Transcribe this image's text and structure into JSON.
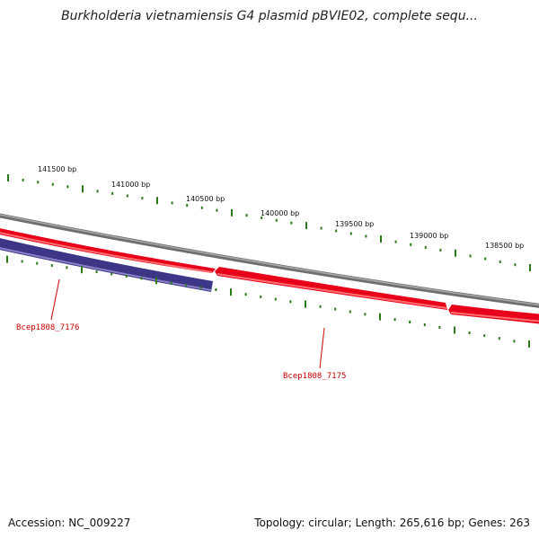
{
  "title": "Burkholderia vietnamiensis G4 plasmid pBVIE02, complete sequ...",
  "ruler": {
    "unit": "bp",
    "labels": [
      "141500 bp",
      "141000 bp",
      "140500 bp",
      "140000 bp",
      "139500 bp",
      "139000 bp",
      "138500 bp"
    ]
  },
  "genes": [
    {
      "name": "Bcep1808_7176",
      "strand": "reverse",
      "color": "#3d3585"
    },
    {
      "name": "Bcep1808_7175",
      "strand": "forward",
      "color": "#e8001a"
    },
    {
      "name": "",
      "strand": "forward",
      "color": "#e8001a"
    }
  ],
  "colors": {
    "backbone": "#808080",
    "forward_gene": "#e8001a",
    "reverse_gene": "#3d3585",
    "ticks": "#2a7a1a",
    "label": "#cc0000"
  },
  "footer": {
    "accession": "Accession: NC_009227",
    "summary": "Topology: circular; Length: 265,616 bp; Genes: 263"
  }
}
